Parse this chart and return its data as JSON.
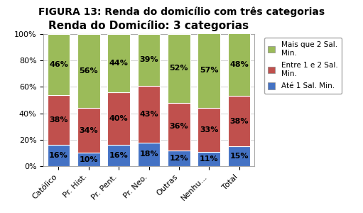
{
  "title": "Renda do Domicílio: 3 categorias",
  "suptitle": "FIGURA 13: Renda do domicílio com três categorias",
  "categories": [
    "Católico",
    "Pr. Hist.",
    "Pr. Pent.",
    "Pr. Neo.",
    "Outras",
    "Nenhu...",
    "Total"
  ],
  "series": {
    "Até 1 Sal. Min.": [
      16,
      10,
      16,
      18,
      12,
      11,
      15
    ],
    "Entre 1 e 2 Sal. Min.": [
      38,
      34,
      40,
      43,
      36,
      33,
      38
    ],
    "Mais que 2 Sal. Min.": [
      46,
      56,
      44,
      39,
      52,
      57,
      48
    ]
  },
  "colors": {
    "Até 1 Sal. Min.": "#4472C4",
    "Entre 1 e 2 Sal. Min.": "#C0504D",
    "Mais que 2 Sal. Min.": "#9BBB59"
  },
  "legend_labels": [
    "Mais que 2 Sal.\nMin.",
    "Entre 1 e 2 Sal.\nMin.",
    "Até 1 Sal. Min."
  ],
  "legend_colors": [
    "#9BBB59",
    "#C0504D",
    "#4472C4"
  ],
  "ylim": [
    0,
    100
  ],
  "yticks": [
    0,
    20,
    40,
    60,
    80,
    100
  ],
  "ytick_labels": [
    "0%",
    "20%",
    "40%",
    "60%",
    "80%",
    "100%"
  ],
  "bg_color": "#FFFFFF",
  "plot_bg_color": "#FFFFFF",
  "bar_edge_color": "#FFFFFF",
  "bar_width": 0.75,
  "label_fontsize": 8,
  "title_fontsize": 11,
  "suptitle_fontsize": 10,
  "tick_fontsize": 8,
  "label_color": "#000000"
}
